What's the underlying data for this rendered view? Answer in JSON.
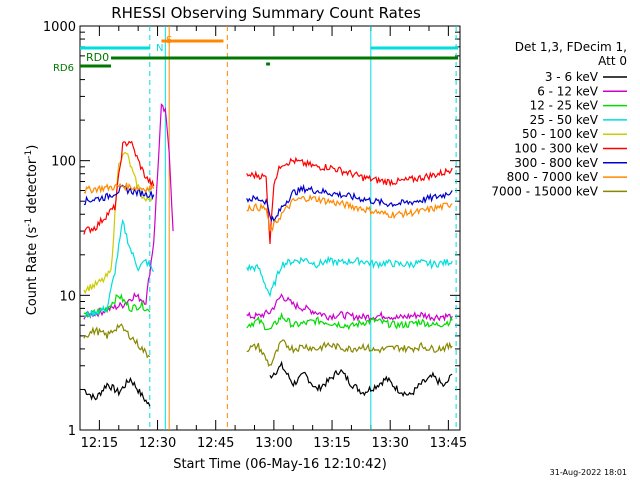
{
  "chart_data": {
    "type": "line",
    "title": "RHESSI Observing Summary Count Rates",
    "xlabel": "Start Time (06-May-16 12:10:42)",
    "ylabel_main": "Count Rate (s",
    "ylabel_sup": "-1",
    "ylabel_tail": " detector",
    "ylabel_sup2": "-1",
    "ylabel_end": ")",
    "scale": "log",
    "ylim": [
      1,
      1000
    ],
    "xlim": [
      "12:10",
      "13:48"
    ],
    "x_ticks": [
      "12:15",
      "12:30",
      "12:45",
      "13:00",
      "13:15",
      "13:30",
      "13:45"
    ],
    "y_ticks": [
      "1",
      "10",
      "100",
      "1000"
    ],
    "legend_header": [
      "Det 1,3, FDecim 1,",
      "Att 0"
    ],
    "legend_position": "right",
    "timestamp": "31-Aug-2022 18:01",
    "flags": [
      {
        "label": "RD0",
        "color": "#007700"
      },
      {
        "label": "RD6",
        "color": "#007700"
      },
      {
        "label": "N",
        "color": "#00dddd"
      },
      {
        "label": "S",
        "color": "#ff8800"
      }
    ],
    "series": [
      {
        "name": "3 - 6 keV",
        "color": "#000000",
        "segments": [
          {
            "x": [
              "12:11",
              "12:14",
              "12:17",
              "12:20",
              "12:23",
              "12:26",
              "12:28"
            ],
            "y": [
              2.0,
              1.7,
              2.2,
              1.9,
              2.4,
              1.8,
              1.5
            ]
          },
          {
            "x": [
              "12:59",
              "13:02",
              "13:05",
              "13:08",
              "13:11",
              "13:14",
              "13:17",
              "13:20",
              "13:23",
              "13:26",
              "13:29",
              "13:32",
              "13:35",
              "13:38",
              "13:41",
              "13:44",
              "13:46"
            ],
            "y": [
              2.5,
              3.0,
              2.2,
              2.6,
              2.0,
              2.3,
              2.8,
              2.2,
              1.9,
              2.1,
              2.4,
              2.0,
              1.8,
              2.2,
              2.5,
              2.1,
              2.6
            ]
          }
        ]
      },
      {
        "name": "6 - 12 keV",
        "color": "#cc00cc",
        "segments": [
          {
            "x": [
              "12:11",
              "12:15",
              "12:18",
              "12:21",
              "12:24",
              "12:27",
              "12:29",
              "12:31",
              "12:32",
              "12:33",
              "12:34"
            ],
            "y": [
              7,
              7.5,
              8,
              8.5,
              10,
              9,
              25,
              250,
              230,
              120,
              30
            ]
          },
          {
            "x": [
              "12:53",
              "12:56",
              "12:59",
              "13:02",
              "13:05",
              "13:08",
              "13:11",
              "13:14",
              "13:17",
              "13:20",
              "13:23",
              "13:26",
              "13:29",
              "13:32",
              "13:35",
              "13:38",
              "13:41",
              "13:44",
              "13:46"
            ],
            "y": [
              7,
              7,
              7.5,
              10,
              8.5,
              8,
              7.5,
              7,
              7.2,
              7,
              6.9,
              7,
              7.1,
              6.8,
              7,
              7.2,
              6.9,
              7,
              7
            ]
          }
        ]
      },
      {
        "name": "12 - 25 keV",
        "color": "#00dd00",
        "segments": [
          {
            "x": [
              "12:11",
              "12:14",
              "12:17",
              "12:20",
              "12:23",
              "12:26",
              "12:28"
            ],
            "y": [
              7,
              7.5,
              8,
              10,
              8,
              8.5,
              7.5
            ]
          },
          {
            "x": [
              "12:53",
              "12:56",
              "12:59",
              "13:02",
              "13:05",
              "13:08",
              "13:11",
              "13:14",
              "13:17",
              "13:20",
              "13:23",
              "13:26",
              "13:29",
              "13:32",
              "13:35",
              "13:38",
              "13:41",
              "13:44",
              "13:46"
            ],
            "y": [
              6,
              6.5,
              5.5,
              7,
              6,
              6.2,
              6.5,
              6.3,
              6.1,
              5.9,
              6.3,
              6.5,
              6.2,
              6,
              6.1,
              6.4,
              6,
              6.2,
              6.5
            ]
          }
        ]
      },
      {
        "name": "25 - 50 keV",
        "color": "#00dddd",
        "segments": [
          {
            "x": [
              "12:11",
              "12:14",
              "12:17",
              "12:19",
              "12:21",
              "12:23",
              "12:25",
              "12:27",
              "12:29"
            ],
            "y": [
              7,
              7.5,
              8,
              15,
              35,
              22,
              16,
              18,
              15
            ]
          },
          {
            "x": [
              "12:53",
              "12:56",
              "12:59",
              "13:02",
              "13:05",
              "13:08",
              "13:11",
              "13:14",
              "13:17",
              "13:20",
              "13:23",
              "13:26",
              "13:29",
              "13:32",
              "13:35",
              "13:38",
              "13:41",
              "13:44",
              "13:46"
            ],
            "y": [
              16,
              16,
              10,
              17,
              18,
              18.5,
              17,
              18,
              17.5,
              18,
              18,
              17,
              17.5,
              17,
              17,
              17.5,
              17,
              17.5,
              18
            ]
          }
        ]
      },
      {
        "name": "50 - 100 keV",
        "color": "#cccc00",
        "segments": [
          {
            "x": [
              "12:11",
              "12:14",
              "12:16",
              "12:18",
              "12:20",
              "12:22",
              "12:24",
              "12:26",
              "12:27",
              "12:29"
            ],
            "y": [
              11,
              12,
              13,
              15,
              100,
              115,
              75,
              55,
              50,
              55
            ]
          }
        ]
      },
      {
        "name": "100 - 300 keV",
        "color": "#ff0000",
        "segments": [
          {
            "x": [
              "12:11",
              "12:14",
              "12:17",
              "12:19",
              "12:21",
              "12:23",
              "12:25",
              "12:27",
              "12:29"
            ],
            "y": [
              30,
              32,
              40,
              45,
              130,
              140,
              100,
              75,
              65
            ]
          },
          {
            "x": [
              "12:53",
              "12:56",
              "12:58",
              "12:59",
              "13:00",
              "13:02",
              "13:05",
              "13:08",
              "13:11",
              "13:14",
              "13:17",
              "13:20",
              "13:23",
              "13:26",
              "13:29",
              "13:32",
              "13:35",
              "13:38",
              "13:41",
              "13:44",
              "13:46"
            ],
            "y": [
              78,
              78,
              75,
              25,
              70,
              95,
              100,
              95,
              90,
              90,
              85,
              80,
              75,
              72,
              70,
              70,
              72,
              75,
              78,
              82,
              88
            ]
          }
        ]
      },
      {
        "name": "300 - 800 keV",
        "color": "#0000cc",
        "segments": [
          {
            "x": [
              "12:11",
              "12:14",
              "12:17",
              "12:19",
              "12:21",
              "12:23",
              "12:25",
              "12:27",
              "12:29"
            ],
            "y": [
              50,
              52,
              54,
              58,
              62,
              60,
              58,
              57,
              56
            ]
          },
          {
            "x": [
              "12:53",
              "12:56",
              "12:58",
              "12:59",
              "13:00",
              "13:02",
              "13:05",
              "13:08",
              "13:11",
              "13:14",
              "13:17",
              "13:20",
              "13:23",
              "13:26",
              "13:29",
              "13:32",
              "13:35",
              "13:38",
              "13:41",
              "13:44",
              "13:46"
            ],
            "y": [
              52,
              52,
              50,
              40,
              35,
              45,
              58,
              62,
              60,
              58,
              56,
              54,
              52,
              50,
              48,
              48,
              49,
              51,
              53,
              56,
              60
            ]
          }
        ]
      },
      {
        "name": "800 - 7000 keV",
        "color": "#ff8800",
        "segments": [
          {
            "x": [
              "12:11",
              "12:14",
              "12:17",
              "12:19",
              "12:21",
              "12:23",
              "12:25",
              "12:27",
              "12:29"
            ],
            "y": [
              60,
              62,
              63,
              64,
              65,
              64,
              63,
              62,
              62
            ]
          },
          {
            "x": [
              "12:53",
              "12:56",
              "12:58",
              "12:59",
              "13:00",
              "13:02",
              "13:05",
              "13:08",
              "13:11",
              "13:14",
              "13:17",
              "13:20",
              "13:23",
              "13:26",
              "13:29",
              "13:32",
              "13:35",
              "13:38",
              "13:41",
              "13:44",
              "13:46"
            ],
            "y": [
              45,
              45,
              44,
              30,
              33,
              40,
              50,
              53,
              52,
              50,
              48,
              46,
              44,
              42,
              40,
              40,
              41,
              42,
              44,
              46,
              48
            ]
          }
        ]
      },
      {
        "name": "7000 - 15000 keV",
        "color": "#888800",
        "segments": [
          {
            "x": [
              "12:11",
              "12:14",
              "12:17",
              "12:20",
              "12:23",
              "12:26",
              "12:28"
            ],
            "y": [
              5,
              5.5,
              5,
              6,
              5,
              4,
              3.5
            ]
          },
          {
            "x": [
              "12:53",
              "12:56",
              "12:59",
              "13:02",
              "13:05",
              "13:08",
              "13:11",
              "13:14",
              "13:17",
              "13:20",
              "13:23",
              "13:26",
              "13:29",
              "13:32",
              "13:35",
              "13:38",
              "13:41",
              "13:44",
              "13:46"
            ],
            "y": [
              4,
              4.2,
              3,
              4.5,
              4,
              4.2,
              4,
              4.3,
              4.1,
              4,
              4.2,
              3.9,
              4,
              4.1,
              4,
              4.2,
              4,
              4.1,
              4.2
            ]
          }
        ]
      }
    ]
  }
}
